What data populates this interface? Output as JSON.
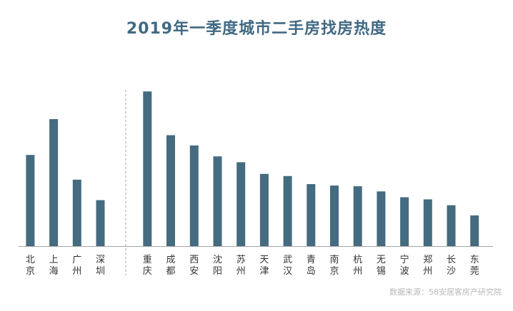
{
  "chart_data": {
    "type": "bar",
    "title": "2019年一季度城市二手房找房热度",
    "source": "数据来源：58安居客房产研究院",
    "groups": [
      {
        "categories": [
          "北京",
          "上海",
          "广州",
          "深圳"
        ],
        "values": [
          125,
          174,
          91,
          63
        ]
      },
      {
        "categories": [
          "重庆",
          "成都",
          "西安",
          "沈阳",
          "苏州",
          "天津",
          "武汉",
          "青岛",
          "南京",
          "杭州",
          "无锡",
          "宁波",
          "郑州",
          "长沙",
          "东莞"
        ],
        "values": [
          212,
          152,
          138,
          123,
          115,
          99,
          96,
          85,
          83,
          82,
          75,
          67,
          64,
          56,
          42
        ]
      }
    ],
    "ylim": [
      0,
      220
    ],
    "bar_color": "#456b80",
    "axis_color": "#a6a6a6",
    "divider": "dashed vertical line between groups",
    "grid": false,
    "legend": "none"
  }
}
